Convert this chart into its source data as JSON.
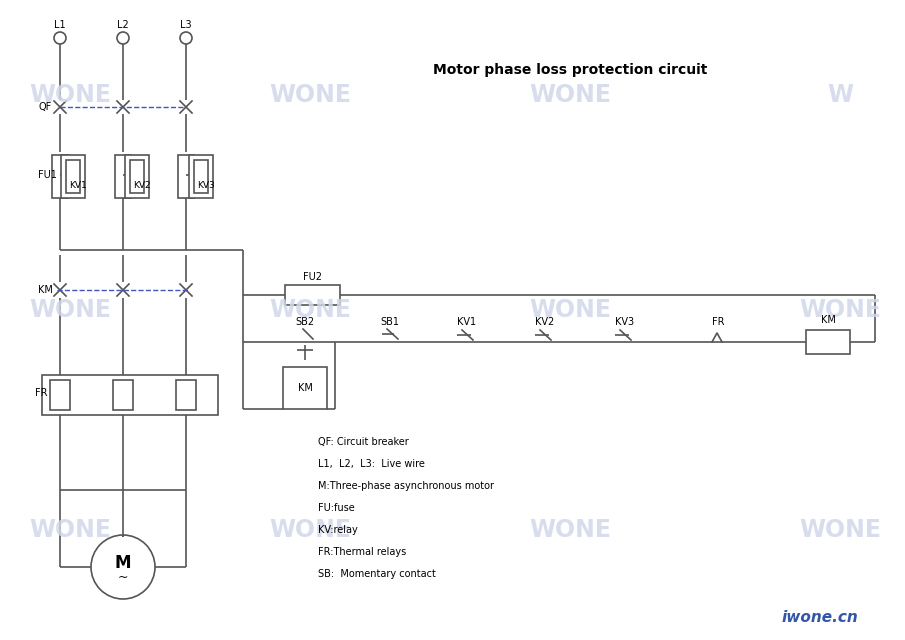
{
  "title": "Motor phase loss protection circuit",
  "legend_text": [
    "QF: Circuit breaker",
    "L1,  L2,  L3:  Live wire",
    "M:Three-phase asynchronous motor",
    "FU:fuse",
    "KV:relay",
    "FR:Thermal relays",
    "SB:  Momentary contact"
  ]
}
